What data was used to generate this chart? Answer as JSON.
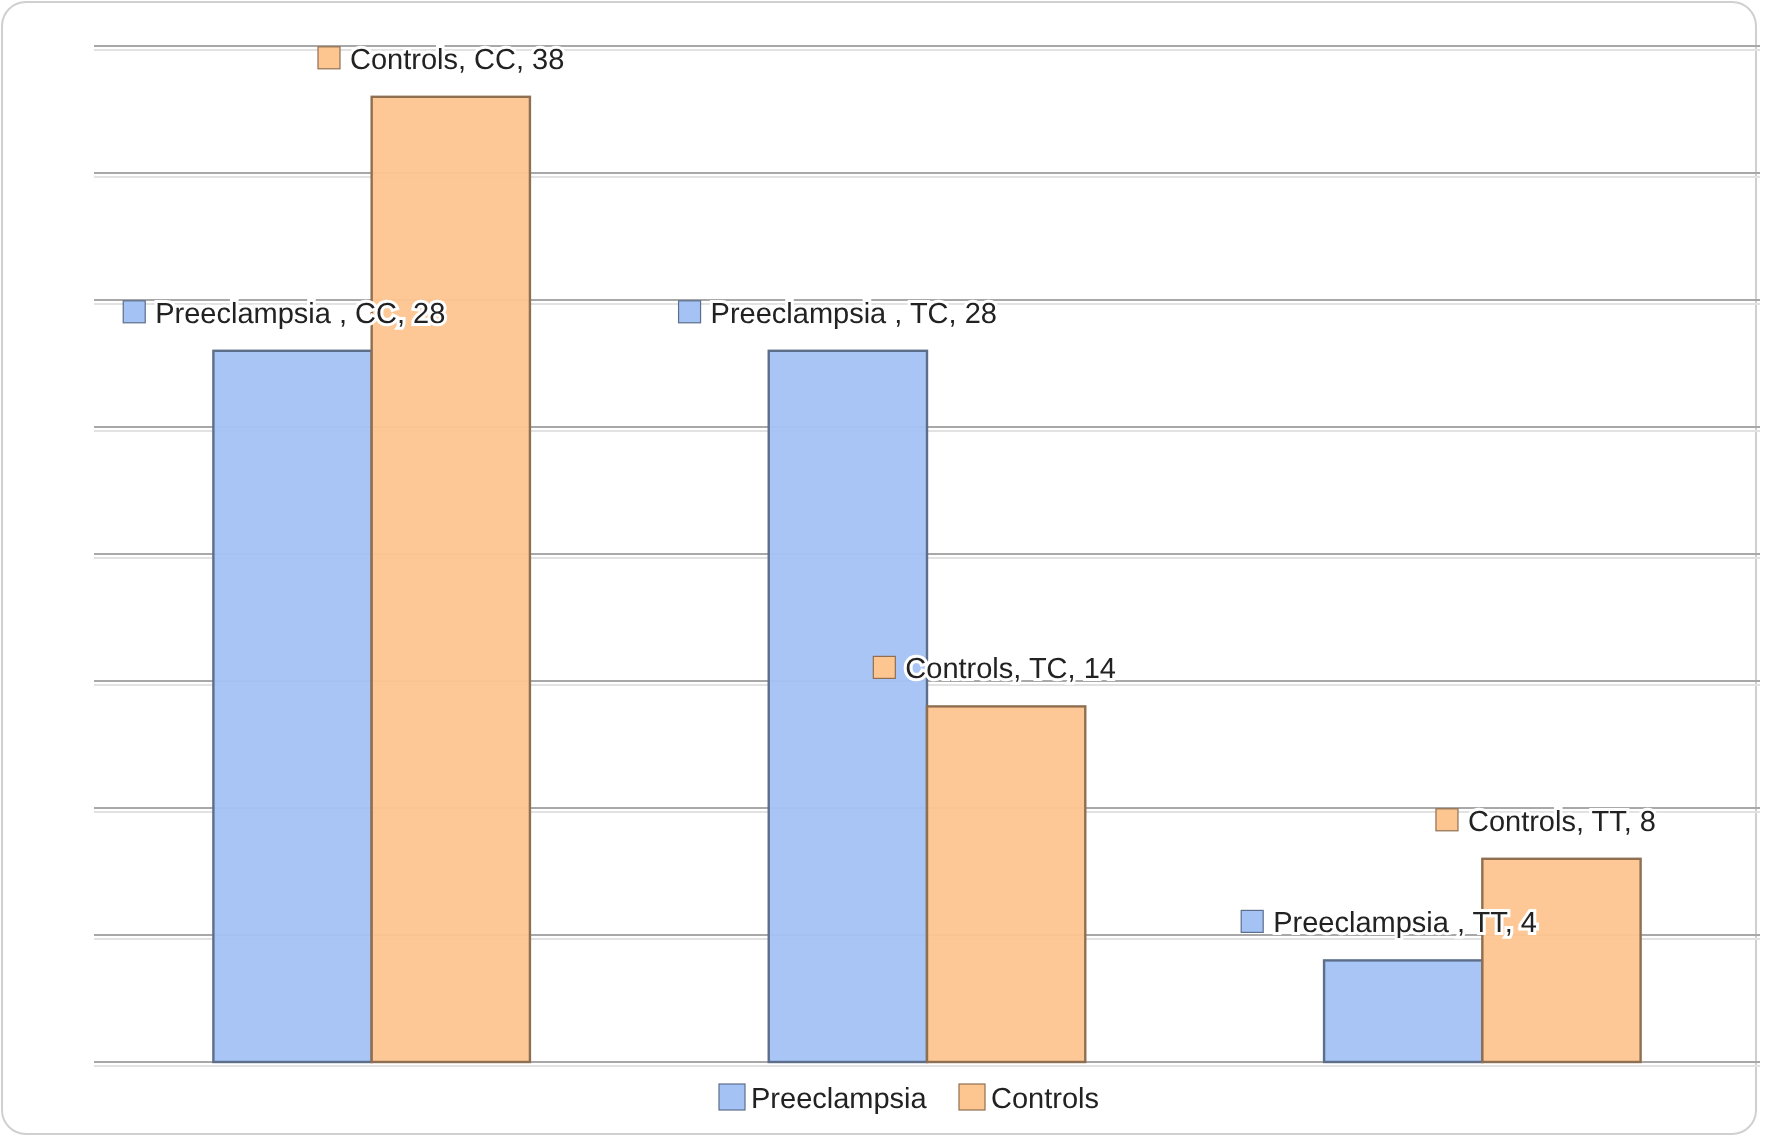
{
  "chart_data": {
    "type": "bar",
    "categories": [
      null,
      null,
      null
    ],
    "series": [
      {
        "name": "Preeclampsia",
        "color": "#a4c2f4",
        "values": [
          28,
          28,
          4
        ],
        "value_labels": [
          "Preeclampsia , CC, 28",
          "Preeclampsia , TC, 28",
          "Preeclampsia , TT, 4"
        ]
      },
      {
        "name": "Controls",
        "color": "#fdc590",
        "values": [
          38,
          14,
          8
        ],
        "value_labels": [
          "Controls, CC, 38",
          "Controls, TC, 14",
          "Controls, TT, 8"
        ]
      }
    ],
    "ylim": [
      0,
      40
    ],
    "yticks": [
      {
        "value": 0,
        "label": null
      },
      {
        "value": 5,
        "label": null
      },
      {
        "value": 10,
        "label": null
      },
      {
        "value": 15,
        "label": null
      },
      {
        "value": 20,
        "label": null
      },
      {
        "value": 25,
        "label": null
      },
      {
        "value": 30,
        "label": null
      },
      {
        "value": 35,
        "label": null
      },
      {
        "value": 40,
        "label": null
      }
    ],
    "grid": "y",
    "legend": "bottom"
  }
}
